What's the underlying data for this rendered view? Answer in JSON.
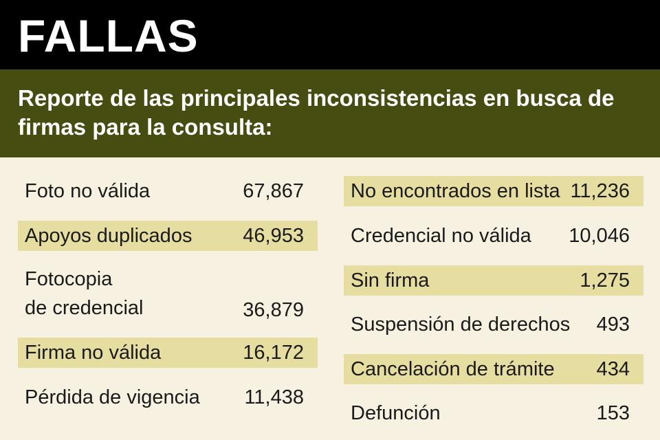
{
  "header": {
    "title": "FALLAS",
    "subtitle": "Reporte de las principales inconsistencias en busca de firmas para la consulta:"
  },
  "colors": {
    "title_bg": "#000000",
    "subtitle_bg": "#474c10",
    "page_bg": "#f6f1e1",
    "highlight": "#e6dda0"
  },
  "left_column": [
    {
      "label": "Foto no válida",
      "value": "67,867"
    },
    {
      "label": "Apoyos duplicados",
      "value": "46,953"
    },
    {
      "label_line1": "Fotocopia",
      "label_line2": "de credencial",
      "value": "36,879"
    },
    {
      "label": "Firma no válida",
      "value": "16,172"
    },
    {
      "label": "Pérdida de vigencia",
      "value": "11,438"
    }
  ],
  "right_column": [
    {
      "label": "No encontrados en lista",
      "value": "11,236"
    },
    {
      "label": "Credencial no válida",
      "value": "10,046"
    },
    {
      "label": "Sin firma",
      "value": "1,275"
    },
    {
      "label": "Suspensión de derechos",
      "value": "493"
    },
    {
      "label": "Cancelación de trámite",
      "value": "434"
    },
    {
      "label": "Defunción",
      "value": "153"
    }
  ]
}
